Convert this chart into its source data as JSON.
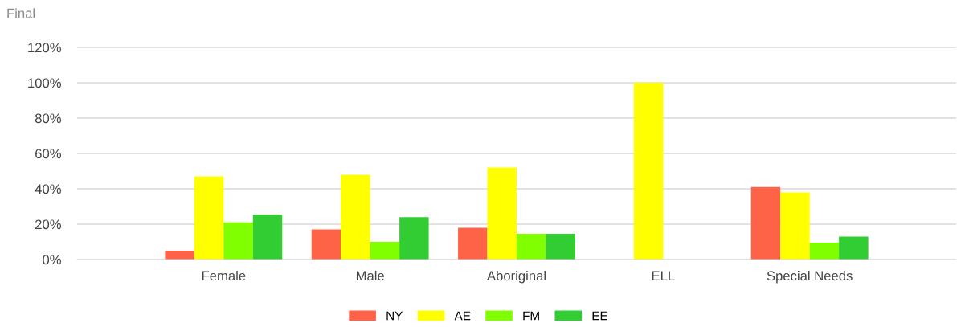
{
  "chart_data": {
    "type": "bar",
    "title": "Final",
    "categories": [
      "Female",
      "Male",
      "Aboriginal",
      "ELL",
      "Special Needs"
    ],
    "series": [
      {
        "name": "NY",
        "color": "#ff6347",
        "values": [
          5,
          17,
          18,
          0,
          41
        ]
      },
      {
        "name": "AE",
        "color": "#ffff00",
        "values": [
          47,
          48,
          52,
          100,
          38
        ]
      },
      {
        "name": "FM",
        "color": "#7fff00",
        "values": [
          21,
          10,
          14.5,
          0,
          9.5
        ]
      },
      {
        "name": "EE",
        "color": "#32cd32",
        "values": [
          25.5,
          24,
          14.5,
          0,
          13
        ]
      }
    ],
    "ylim": [
      0,
      120
    ],
    "yticks": [
      {
        "value": 0,
        "label": "0%"
      },
      {
        "value": 20,
        "label": "20%"
      },
      {
        "value": 40,
        "label": "40%"
      },
      {
        "value": 60,
        "label": "60%"
      },
      {
        "value": 80,
        "label": "80%"
      },
      {
        "value": 100,
        "label": "100%"
      },
      {
        "value": 120,
        "label": "120%"
      }
    ],
    "grid": "y",
    "legend": "bottom"
  }
}
